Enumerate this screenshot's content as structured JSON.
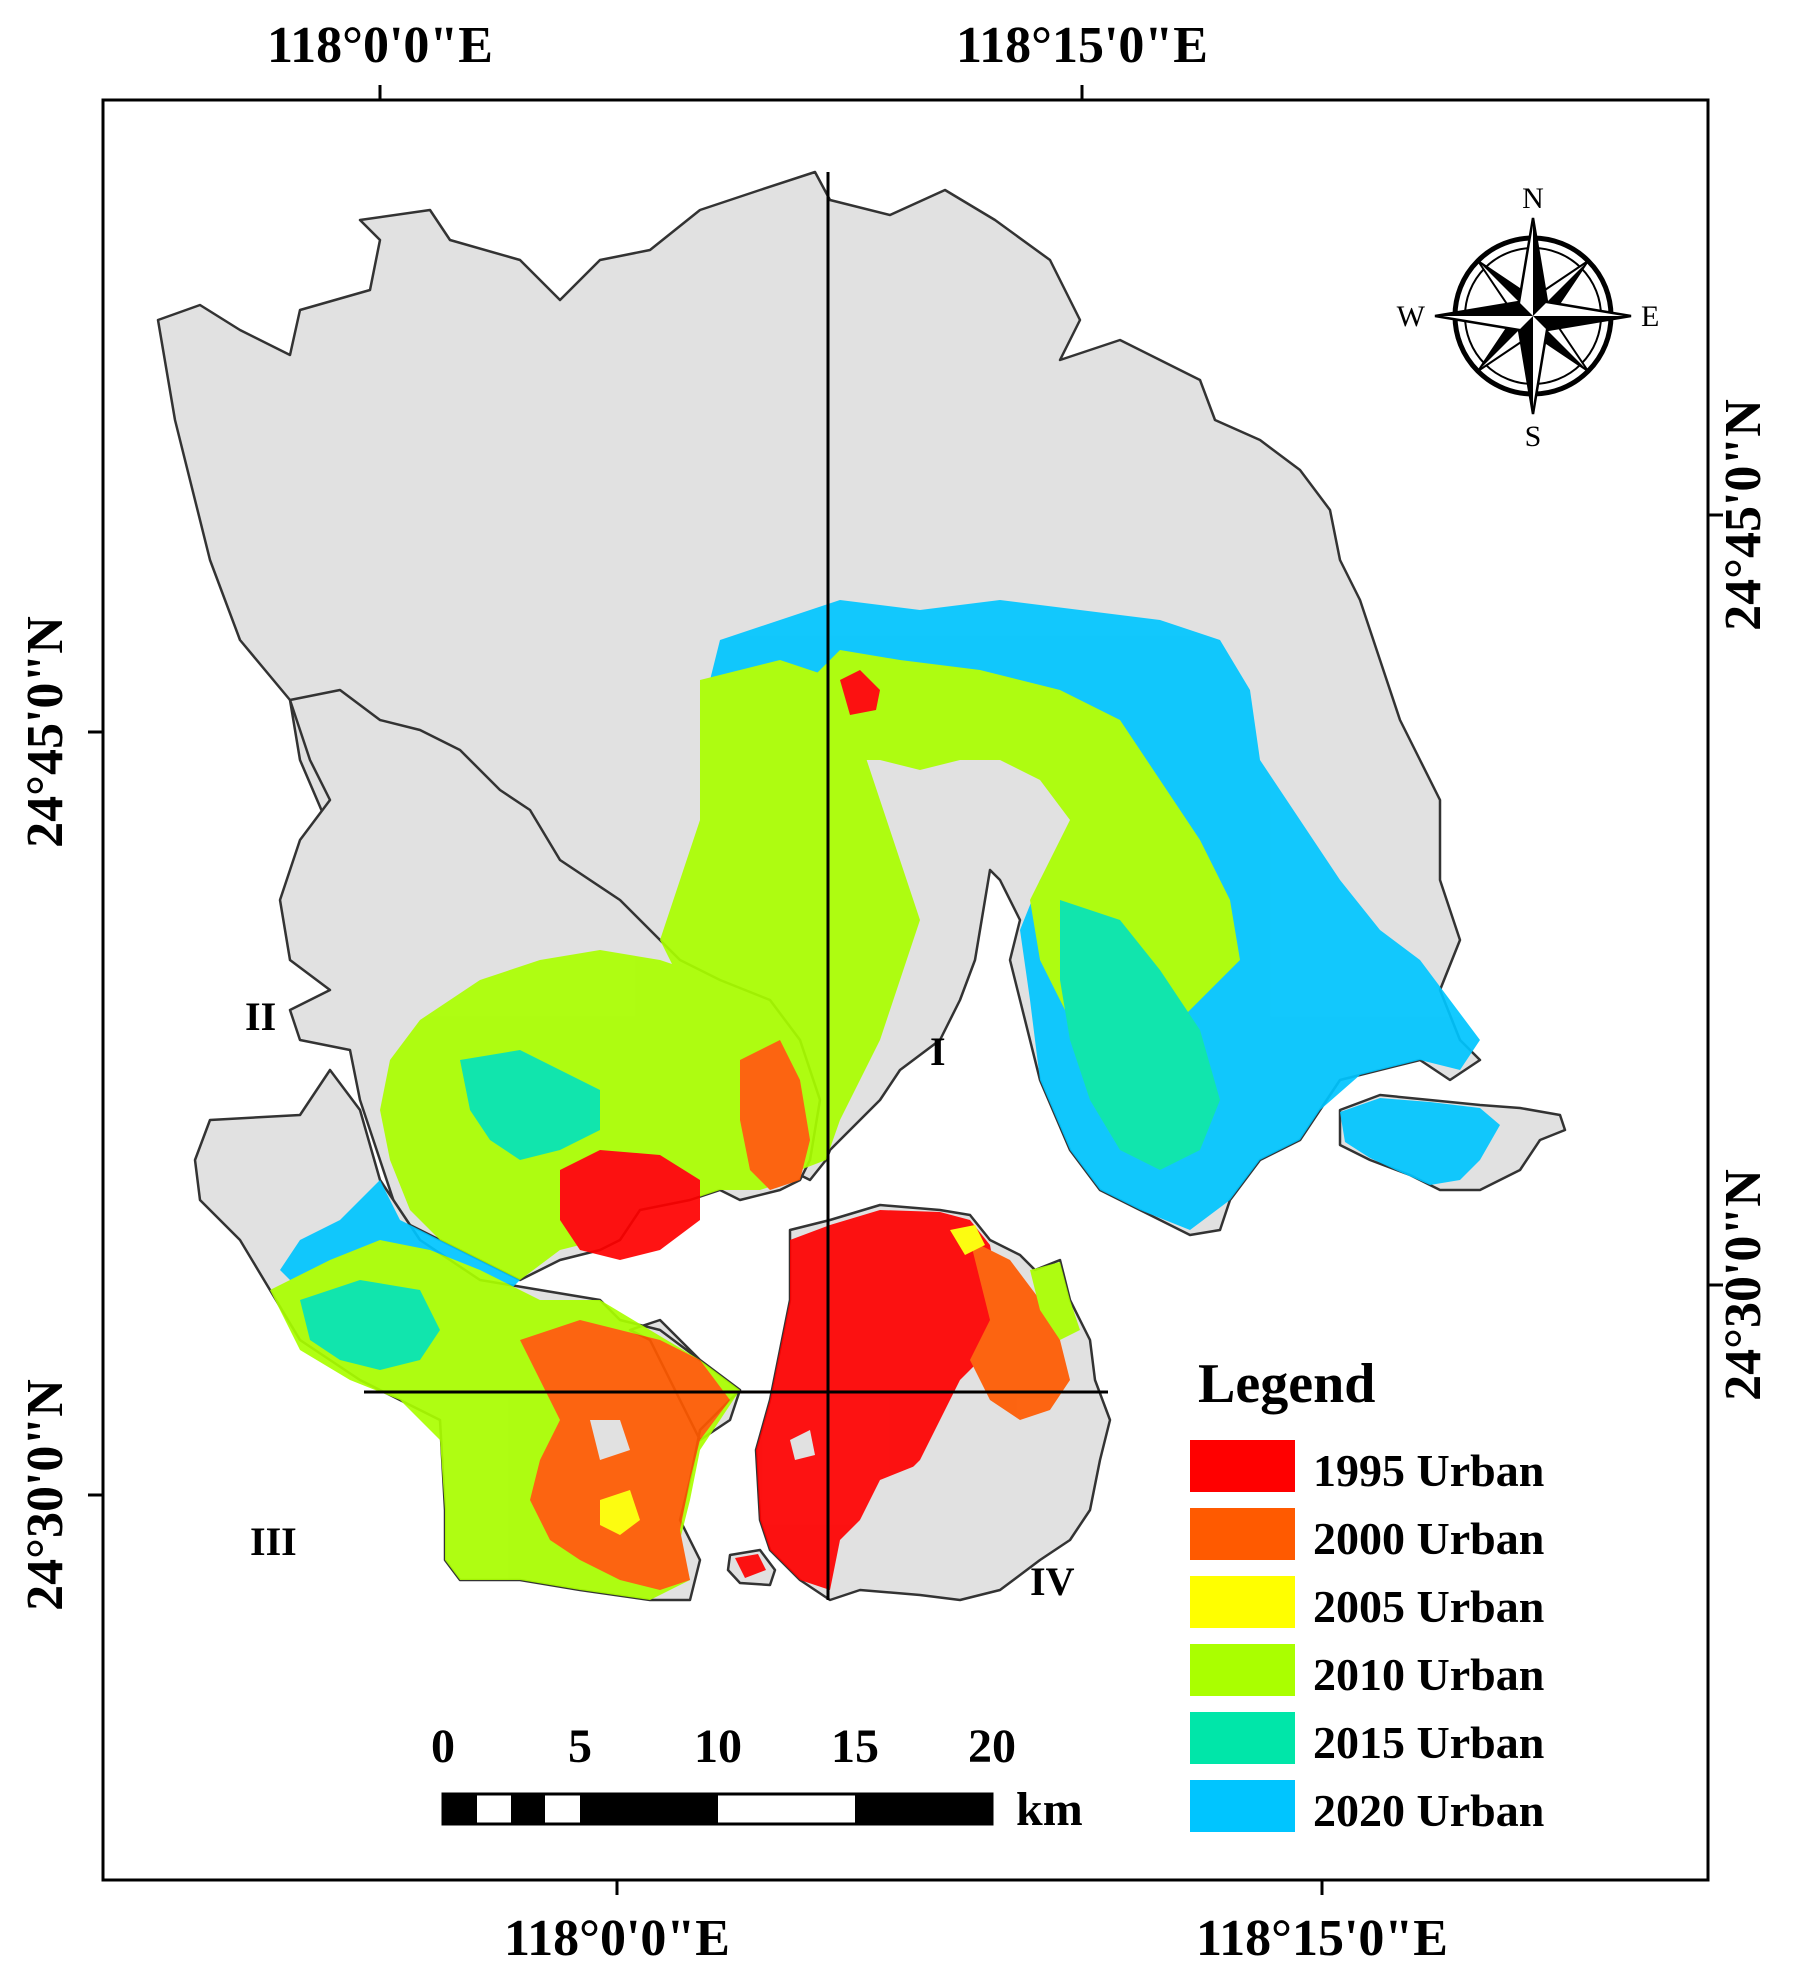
{
  "coords": {
    "top": [
      "118°0'0\"E",
      "118°15'0\"E"
    ],
    "bottom": [
      "118°0'0\"E",
      "118°15'0\"E"
    ],
    "left": [
      "24°45'0\"N",
      "24°30'0\"N"
    ],
    "right": [
      "24°45'0\"N",
      "24°30'0\"N"
    ]
  },
  "zones": [
    "I",
    "II",
    "III",
    "IV"
  ],
  "compass": {
    "n": "N",
    "s": "S",
    "e": "E",
    "w": "W"
  },
  "legend": {
    "title": "Legend",
    "items": [
      {
        "label": "1995 Urban",
        "color": "#ff0000"
      },
      {
        "label": "2000 Urban",
        "color": "#ff5a00"
      },
      {
        "label": "2005 Urban",
        "color": "#ffff00"
      },
      {
        "label": "2010 Urban",
        "color": "#aaff00"
      },
      {
        "label": "2015 Urban",
        "color": "#00e6a9"
      },
      {
        "label": "2020 Urban",
        "color": "#00c5ff"
      }
    ]
  },
  "scalebar": {
    "ticks": [
      "0",
      "5",
      "10",
      "15",
      "20"
    ],
    "unit": "km"
  },
  "colors": {
    "land": "#e1e1e1",
    "border": "#333333",
    "background": "#ffffff"
  }
}
